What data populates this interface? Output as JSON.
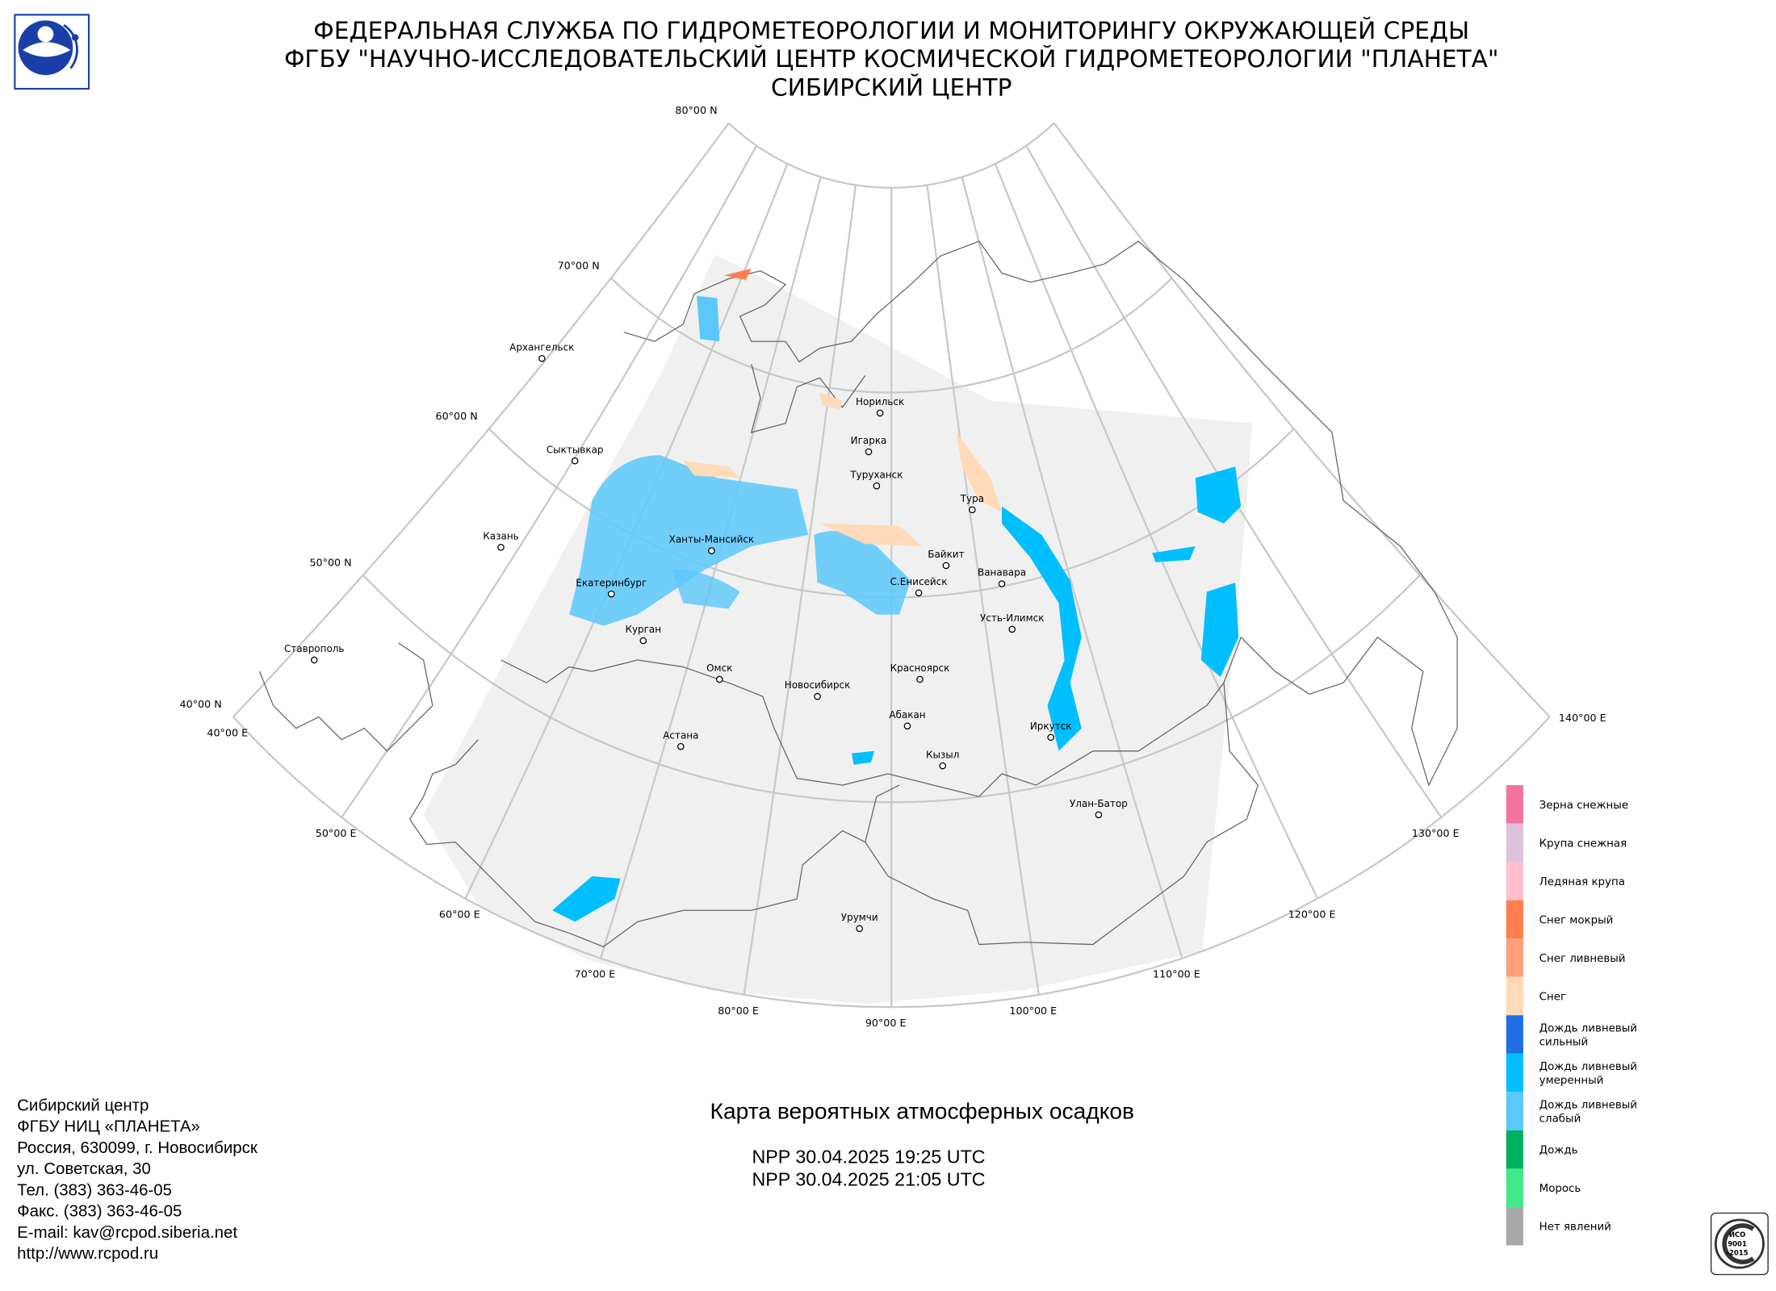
{
  "header": {
    "lines": [
      "ФЕДЕРАЛЬНАЯ СЛУЖБА ПО ГИДРОМЕТЕОРОЛОГИИ И МОНИТОРИНГУ ОКРУЖАЮЩЕЙ СРЕДЫ",
      "ФГБУ \"НАУЧНО-ИССЛЕДОВАТЕЛЬСКИЙ ЦЕНТР КОСМИЧЕСКОЙ ГИДРОМЕТЕОРОЛОГИИ \"ПЛАНЕТА\"",
      "СИБИРСКИЙ ЦЕНТР"
    ]
  },
  "map": {
    "latitude_labels": [
      "80°00 N",
      "70°00 N",
      "60°00 N",
      "50°00 N",
      "40°00 N"
    ],
    "longitude_labels": [
      "40°00 E",
      "50°00 E",
      "60°00 E",
      "70°00 E",
      "80°00 E",
      "90°00 E",
      "100°00 E",
      "110°00 E",
      "120°00 E",
      "130°00 E",
      "140°00 E"
    ],
    "cities": [
      "Архангельск",
      "Сыктывкар",
      "Казань",
      "Екатеринбург",
      "Курган",
      "Ставрополь",
      "Ханты-Мансийск",
      "Омск",
      "Астана",
      "Новосибирск",
      "Норильск",
      "Игарка",
      "Туруханск",
      "Тура",
      "Байкит",
      "Ванавара",
      "С.Енисейск",
      "Усть-Илимск",
      "Красноярск",
      "Абакан",
      "Кызыл",
      "Иркутск",
      "Улан-Батор",
      "Урумчи"
    ]
  },
  "legend": {
    "items": [
      {
        "lines": [
          "Зерна снежные"
        ],
        "color": "#f4739c"
      },
      {
        "lines": [
          "Крупа снежная"
        ],
        "color": "#dcc3dc"
      },
      {
        "lines": [
          "Ледяная крупа"
        ],
        "color": "#ffc0cb"
      },
      {
        "lines": [
          "Снег мокрый"
        ],
        "color": "#ff7f50"
      },
      {
        "lines": [
          "Снег ливневый"
        ],
        "color": "#ffa07a"
      },
      {
        "lines": [
          "Снег"
        ],
        "color": "#ffdab9"
      },
      {
        "lines": [
          "Дождь ливневый",
          "сильный"
        ],
        "color": "#1e6ee6"
      },
      {
        "lines": [
          "Дождь ливневый",
          "умеренный"
        ],
        "color": "#00bfff"
      },
      {
        "lines": [
          "Дождь ливневый",
          "слабый"
        ],
        "color": "#5ac8fa"
      },
      {
        "lines": [
          "Дождь"
        ],
        "color": "#00b060"
      },
      {
        "lines": [
          "Морось"
        ],
        "color": "#40e888"
      },
      {
        "lines": [
          "Нет явлений"
        ],
        "color": "#a9a9a9"
      }
    ]
  },
  "footer": {
    "address": [
      "Сибирский центр",
      "ФГБУ НИЦ «ПЛАНЕТА»",
      "Россия, 630099, г. Новосибирск",
      "ул. Советская, 30",
      "Тел. (383) 363-46-05",
      "Факс. (383) 363-46-05",
      "E-mail: kav@rcpod.siberia.net",
      "http://www.rcpod.ru"
    ],
    "title": "Карта вероятных атмосферных осадков",
    "passes": [
      "NPP 30.04.2025  19:25 UTC",
      "NPP 30.04.2025  21:05 UTC"
    ]
  },
  "iso_badge": {
    "lines": [
      "ИСО",
      "9001",
      "-2015"
    ]
  }
}
